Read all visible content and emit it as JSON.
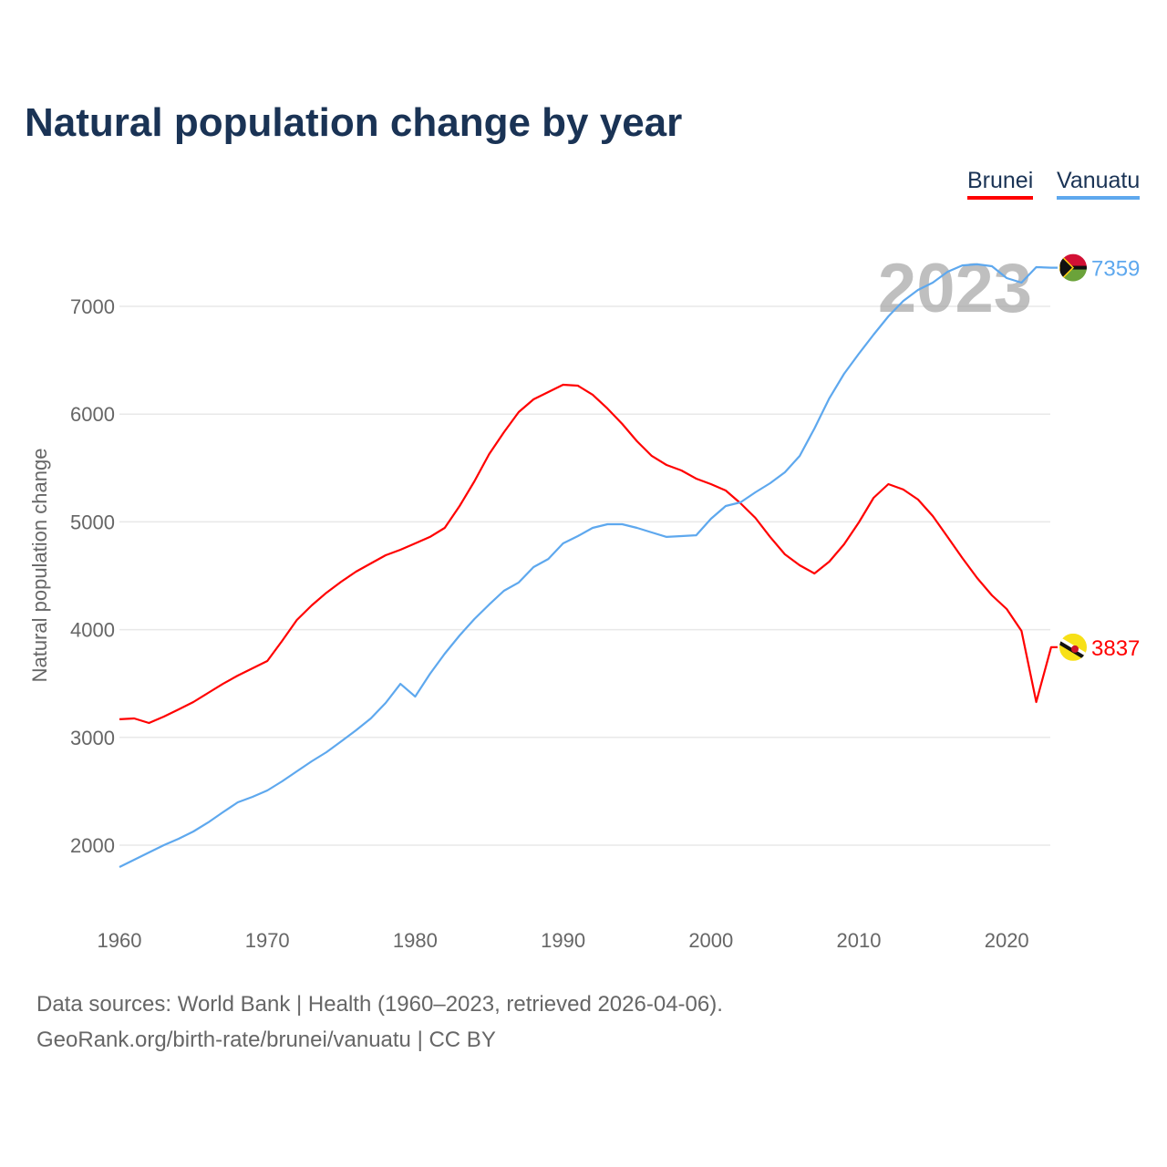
{
  "title": "Natural population change by year",
  "legend": [
    {
      "label": "Brunei",
      "color": "#ff0000"
    },
    {
      "label": "Vanuatu",
      "color": "#5ea8ee"
    }
  ],
  "footer": {
    "line1": "Data sources: World Bank | Health (1960–2023, retrieved 2026-04-06).",
    "line2": "GeoRank.org/birth-rate/brunei/vanuatu | CC BY"
  },
  "chart_data": {
    "type": "line",
    "title": "Natural population change by year",
    "xlabel": "",
    "ylabel": "Natural population change",
    "year_overlay": "2023",
    "xlim": [
      1960,
      2023
    ],
    "ylim": [
      1500,
      7600
    ],
    "xticks": [
      1960,
      1970,
      1980,
      1990,
      2000,
      2010,
      2020
    ],
    "yticks": [
      2000,
      3000,
      4000,
      5000,
      6000,
      7000
    ],
    "grid": true,
    "legend_position": "top-right",
    "x": [
      1960,
      1961,
      1962,
      1963,
      1964,
      1965,
      1966,
      1967,
      1968,
      1969,
      1970,
      1971,
      1972,
      1973,
      1974,
      1975,
      1976,
      1977,
      1978,
      1979,
      1980,
      1981,
      1982,
      1983,
      1984,
      1985,
      1986,
      1987,
      1988,
      1989,
      1990,
      1991,
      1992,
      1993,
      1994,
      1995,
      1996,
      1997,
      1998,
      1999,
      2000,
      2001,
      2002,
      2003,
      2004,
      2005,
      2006,
      2007,
      2008,
      2009,
      2010,
      2011,
      2012,
      2013,
      2014,
      2015,
      2016,
      2017,
      2018,
      2019,
      2020,
      2021,
      2022,
      2023
    ],
    "series": [
      {
        "name": "Brunei",
        "color": "#ff0000",
        "end_label": "3837",
        "values": [
          3168,
          3176,
          3134,
          3193,
          3260,
          3328,
          3413,
          3497,
          3574,
          3641,
          3709,
          3895,
          4090,
          4225,
          4343,
          4445,
          4538,
          4614,
          4690,
          4741,
          4800,
          4860,
          4944,
          5147,
          5376,
          5629,
          5832,
          6019,
          6137,
          6205,
          6272,
          6264,
          6180,
          6052,
          5909,
          5748,
          5612,
          5528,
          5477,
          5401,
          5350,
          5291,
          5173,
          5037,
          4860,
          4699,
          4597,
          4521,
          4631,
          4792,
          4995,
          5223,
          5350,
          5300,
          5207,
          5054,
          4860,
          4665,
          4479,
          4318,
          4191,
          3988,
          3328,
          3837
        ]
      },
      {
        "name": "Vanuatu",
        "color": "#5ea8ee",
        "end_label": "7359",
        "values": [
          1797,
          1865,
          1932,
          2000,
          2059,
          2127,
          2211,
          2305,
          2398,
          2448,
          2508,
          2592,
          2685,
          2778,
          2863,
          2964,
          3066,
          3176,
          3320,
          3497,
          3379,
          3590,
          3777,
          3946,
          4098,
          4233,
          4360,
          4437,
          4580,
          4656,
          4800,
          4868,
          4944,
          4978,
          4978,
          4944,
          4902,
          4860,
          4868,
          4876,
          5029,
          5147,
          5181,
          5274,
          5359,
          5460,
          5612,
          5866,
          6146,
          6374,
          6560,
          6738,
          6907,
          7050,
          7152,
          7220,
          7321,
          7380,
          7390,
          7372,
          7262,
          7220,
          7364,
          7359
        ]
      }
    ]
  }
}
